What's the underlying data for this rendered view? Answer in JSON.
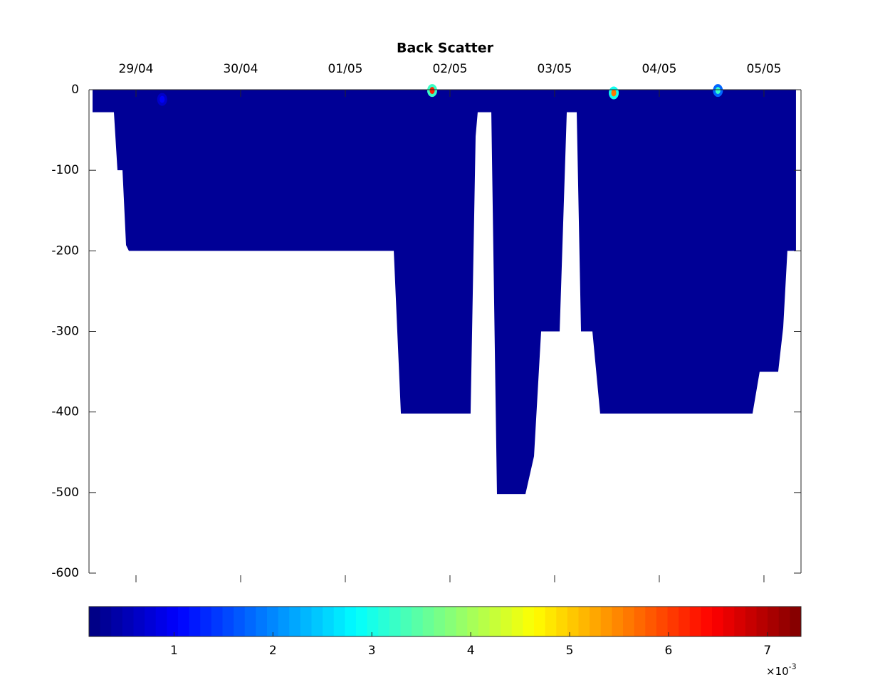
{
  "chart_data": {
    "type": "section",
    "title": "Back Scatter",
    "xlim": [
      -0.449,
      6.354
    ],
    "xticks": [
      {
        "value": 0,
        "label": "29/04"
      },
      {
        "value": 1,
        "label": "30/04"
      },
      {
        "value": 2,
        "label": "01/05"
      },
      {
        "value": 3,
        "label": "02/05"
      },
      {
        "value": 4,
        "label": "03/05"
      },
      {
        "value": 5,
        "label": "04/05"
      },
      {
        "value": 6,
        "label": "05/05"
      }
    ],
    "ylim": [
      -600,
      0
    ],
    "yticks": [
      0,
      -100,
      -200,
      -300,
      -400,
      -500,
      -600
    ],
    "field": {
      "value": 0.3,
      "x": [
        -0.415,
        -0.211,
        -0.177,
        -0.129,
        -0.095,
        -0.068,
        2.463,
        2.531,
        3.197,
        3.245,
        3.265,
        3.395,
        3.449,
        3.721,
        3.803,
        3.871,
        4.048,
        4.116,
        4.211,
        4.252,
        4.361,
        4.435,
        5.891,
        5.959,
        6.136,
        6.184,
        6.224,
        6.306
      ],
      "bottom": [
        -28,
        -28,
        -100,
        -100,
        -193,
        -200,
        -200,
        -402,
        -402,
        -58,
        -28,
        -28,
        -502,
        -502,
        -455,
        -300,
        -300,
        -28,
        -28,
        -300,
        -300,
        -402,
        -402,
        -350,
        -350,
        -295,
        -200,
        -200
      ]
    },
    "hotspots": {
      "x": [
        4.565,
        2.83,
        5.56,
        0.25
      ],
      "depth": [
        -4,
        -1,
        -1,
        -12
      ],
      "values": [
        5.6,
        6.2,
        3.2,
        1.0
      ]
    },
    "clim": [
      0.14,
      7.34
    ],
    "colorbar_ticks": [
      1,
      2,
      3,
      4,
      5,
      6,
      7
    ],
    "colorbar_multiplier": {
      "base": "×10",
      "exponent": "-3"
    },
    "colormap": "jet"
  }
}
